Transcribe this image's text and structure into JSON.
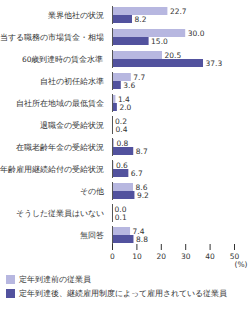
{
  "chart_data": {
    "type": "bar",
    "orientation": "horizontal",
    "data_labels": true,
    "grid": false,
    "legend": "bottom",
    "xlabel": "(%)",
    "xlim": [
      0,
      50
    ],
    "xticks": [
      0,
      10,
      20,
      30,
      40,
      50
    ],
    "categories": [
      "業界他社の状況",
      "担当する職務の市場賃金・相場",
      "60歳到達時の賃金水準",
      "自社の初任給水準",
      "自社所在地域の最低賃金",
      "退職金の受給状況",
      "在職老齢年金の受給状況",
      "高年齢雇用継続給付の受給状況",
      "その他",
      "そうした従業員はいない",
      "無回答"
    ],
    "series": [
      {
        "name": "定年到達前の従業員",
        "color": "#b7b7e0",
        "values": [
          22.7,
          30.0,
          20.5,
          7.7,
          1.4,
          0.2,
          0.8,
          0.6,
          8.6,
          0.0,
          7.4
        ],
        "value_labels": [
          "22.7",
          "30.0",
          "20.5",
          "7.7",
          "1.4",
          "0.2",
          "0.8",
          "0.6",
          "8.6",
          "0.0",
          "7.4"
        ]
      },
      {
        "name": "定年到達後、継続雇用制度によって雇用されている従業員",
        "color": "#52529e",
        "values": [
          8.2,
          15.0,
          37.3,
          3.6,
          2.0,
          0.4,
          8.7,
          6.7,
          9.2,
          0.1,
          8.8
        ],
        "value_labels": [
          "8.2",
          "15.0",
          "37.3",
          "3.6",
          "2.0",
          "0.4",
          "8.7",
          "6.7",
          "9.2",
          "0.1",
          "8.8"
        ]
      }
    ]
  }
}
